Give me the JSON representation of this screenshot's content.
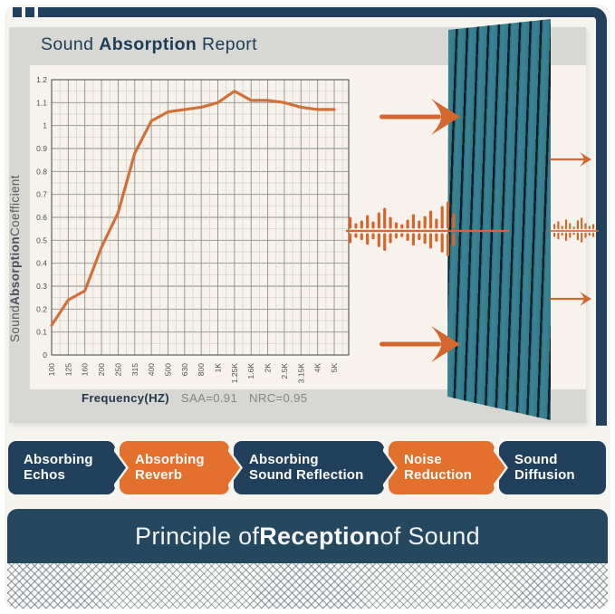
{
  "header": {
    "title_part1": "Sound ",
    "title_part2": "Absorption",
    "title_part3": " Report"
  },
  "chart_data": {
    "type": "line",
    "title": "Sound Absorption Report",
    "xlabel": "Frequency(HZ)",
    "ylabel": "Sound Absorption Coefficient",
    "categories": [
      "100",
      "125",
      "160",
      "200",
      "250",
      "315",
      "400",
      "500",
      "630",
      "800",
      "1K",
      "1.25K",
      "1.6K",
      "2K",
      "2.5K",
      "3.15K",
      "4K",
      "5K"
    ],
    "values": [
      0.13,
      0.24,
      0.28,
      0.47,
      0.62,
      0.88,
      1.02,
      1.06,
      1.07,
      1.08,
      1.1,
      1.15,
      1.11,
      1.11,
      1.1,
      1.08,
      1.07,
      1.07
    ],
    "ylim": [
      0,
      1.2
    ],
    "ytick_step": 0.1,
    "ytick_minor_step": 0.05,
    "yticks": [
      "0",
      "0.1",
      "0.2",
      "0.3",
      "0.4",
      "0.5",
      "0.6",
      "0.7",
      "0.8",
      "0.9",
      "1",
      "1.1",
      "1.2"
    ],
    "grid": true,
    "legend": false,
    "annotations": [
      "SAA=0.91",
      "NRC=0.95"
    ],
    "line_color": "#d2703a",
    "grid_minor_color": "#cfcec5",
    "grid_major_color": "#908f87",
    "frame_color": "#54544e",
    "label_color": "#4c4c47"
  },
  "axis": {
    "y_part1": "Sound ",
    "y_part2": "Absorption",
    "y_part3": " Coefficient",
    "x_label": "Frequency(HZ)",
    "saa": "SAA=0.91",
    "nrc": "NRC=0.95"
  },
  "illustration": {
    "panel": "acoustic-slat-wall-panel",
    "waves": {
      "color": "#d4672e",
      "incident_amplitudes": [
        13,
        6,
        9,
        15,
        8,
        18,
        23,
        13,
        7,
        5,
        10,
        16,
        9,
        14,
        20,
        11,
        25,
        30,
        17
      ],
      "transmitted_amplitudes": [
        6,
        9,
        4,
        11,
        7,
        3,
        10,
        13,
        7,
        4,
        6
      ]
    }
  },
  "steps": [
    {
      "line1": "Absorbing",
      "line2": "Echos",
      "variant": "navy",
      "arrow": true
    },
    {
      "line1": "Absorbing",
      "line2": "Reverb",
      "variant": "orange",
      "arrow": true
    },
    {
      "line1": "Absorbing",
      "line2": "Sound Reflection",
      "variant": "navy",
      "arrow": true
    },
    {
      "line1": "Noise",
      "line2": "Reduction",
      "variant": "orange",
      "arrow": true
    },
    {
      "line1": "Sound",
      "line2": "Diffusion",
      "variant": "navy",
      "arrow": false
    }
  ],
  "footer": {
    "part1": "Principle of ",
    "part2": "Reception",
    "part3": " of Sound"
  },
  "colors": {
    "navy": "#20405b",
    "footer_navy": "#26485f",
    "orange": "#e4702e",
    "arrow_orange": "#d4672e",
    "teal": "#37808f",
    "teal_dark": "#101f2a",
    "gray_mat": "#d7d8d3",
    "cream": "#f6f4ee",
    "chart_bg": "#f7f3ec"
  }
}
